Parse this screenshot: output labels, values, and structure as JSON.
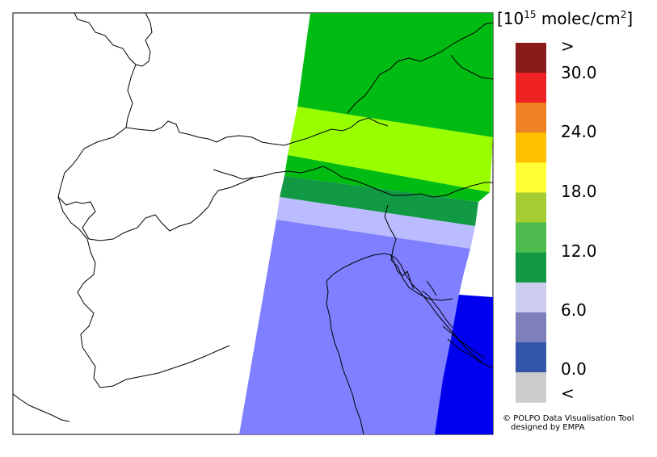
{
  "legend": {
    "unit_base": "[10",
    "unit_exp": "15",
    "unit_rest": " molec/cm",
    "unit_sq": "2",
    "unit_close": "]",
    "labels": [
      ">",
      "30.0",
      "24.0",
      "18.0",
      "12.0",
      "6.0",
      "0.0",
      "<"
    ],
    "swatches": [
      "#8b1a1a",
      "#ee2222",
      "#f08226",
      "#ffc000",
      "#ffff33",
      "#a6cc33",
      "#4dbb4d",
      "#119944",
      "#ccccee",
      "#7f7fbb",
      "#3355aa",
      "#cccccc"
    ]
  },
  "credit": {
    "line1": "© POLPO Data Visualisation Tool",
    "line2": "designed by EMPA"
  },
  "swath_colors": {
    "green": "#00bb11",
    "lime": "#99ff00",
    "dark_green": "#119944",
    "lavender": "#bbbbff",
    "periwinkle": "#7f7fff",
    "blue": "#0000ee"
  }
}
